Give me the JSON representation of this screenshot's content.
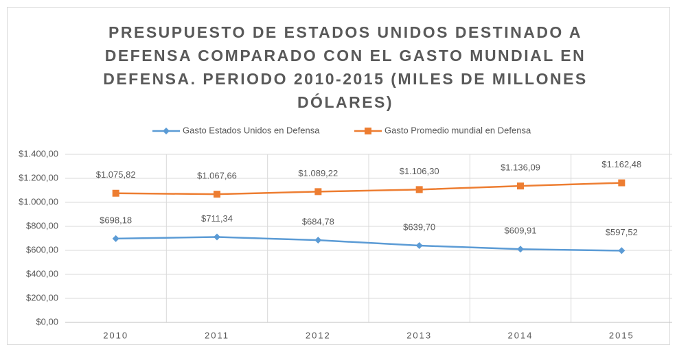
{
  "chart_data": {
    "type": "line",
    "title": "PRESUPUESTO DE ESTADOS UNIDOS DESTINADO A DEFENSA COMPARADO CON EL GASTO MUNDIAL EN DEFENSA. PERIODO 2010-2015 (MILES DE MILLONES DÓLARES)",
    "categories": [
      "2010",
      "2011",
      "2012",
      "2013",
      "2014",
      "2015"
    ],
    "series": [
      {
        "name": "Gasto Estados Unidos en Defensa",
        "color": "#5b9bd5",
        "marker": "diamond",
        "values": [
          698.18,
          711.34,
          684.78,
          639.7,
          609.91,
          597.52
        ],
        "value_labels": [
          "$698,18",
          "$711,34",
          "$684,78",
          "$639,70",
          "$609,91",
          "$597,52"
        ]
      },
      {
        "name": "Gasto Promedio mundial en Defensa",
        "color": "#ed7d31",
        "marker": "square",
        "values": [
          1075.82,
          1067.66,
          1089.22,
          1106.3,
          1136.09,
          1162.48
        ],
        "value_labels": [
          "$1.075,82",
          "$1.067,66",
          "$1.089,22",
          "$1.106,30",
          "$1.136,09",
          "$1.162,48"
        ]
      }
    ],
    "ylim": [
      0,
      1400
    ],
    "yticks": [
      {
        "value": 0,
        "label": "$0,00"
      },
      {
        "value": 200,
        "label": "$200,00"
      },
      {
        "value": 400,
        "label": "$400,00"
      },
      {
        "value": 600,
        "label": "$600,00"
      },
      {
        "value": 800,
        "label": "$800,00"
      },
      {
        "value": 1000,
        "label": "$1.000,00"
      },
      {
        "value": 1200,
        "label": "$1.200,00"
      },
      {
        "value": 1400,
        "label": "$1.400,00"
      }
    ],
    "grid": true,
    "legend": "top"
  }
}
